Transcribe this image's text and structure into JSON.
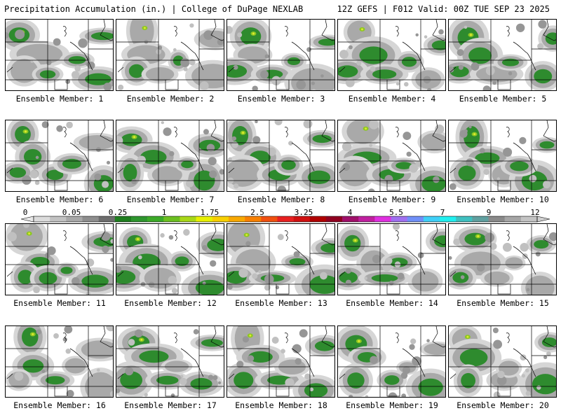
{
  "header": {
    "left_title": "Precipitation Accumulation (in.) | College of DuPage NEXLAB",
    "right_title": "12Z GEFS | F012 Valid: 00Z TUE SEP 23 2025"
  },
  "panels": [
    {
      "member": 1,
      "label": "Ensemble Member: 1"
    },
    {
      "member": 2,
      "label": "Ensemble Member: 2"
    },
    {
      "member": 3,
      "label": "Ensemble Member: 3"
    },
    {
      "member": 4,
      "label": "Ensemble Member: 4"
    },
    {
      "member": 5,
      "label": "Ensemble Member: 5"
    },
    {
      "member": 6,
      "label": "Ensemble Member: 6"
    },
    {
      "member": 7,
      "label": "Ensemble Member: 7"
    },
    {
      "member": 8,
      "label": "Ensemble Member: 8"
    },
    {
      "member": 9,
      "label": "Ensemble Member: 9"
    },
    {
      "member": 10,
      "label": "Ensemble Member: 10"
    },
    {
      "member": 11,
      "label": "Ensemble Member: 11"
    },
    {
      "member": 12,
      "label": "Ensemble Member: 12"
    },
    {
      "member": 13,
      "label": "Ensemble Member: 13"
    },
    {
      "member": 14,
      "label": "Ensemble Member: 14"
    },
    {
      "member": 15,
      "label": "Ensemble Member: 15"
    },
    {
      "member": 16,
      "label": "Ensemble Member: 16"
    },
    {
      "member": 17,
      "label": "Ensemble Member: 17"
    },
    {
      "member": 18,
      "label": "Ensemble Member: 18"
    },
    {
      "member": 19,
      "label": "Ensemble Member: 19"
    },
    {
      "member": 20,
      "label": "Ensemble Member: 20"
    }
  ],
  "colorbar": {
    "labels": [
      "0",
      "0.05",
      "0.25",
      "1",
      "1.75",
      "2.5",
      "3.25",
      "4",
      "5.5",
      "7",
      "9",
      "12"
    ],
    "colors": [
      "#dcdcdc",
      "#c2c2c2",
      "#a8a8a8",
      "#8e8e8e",
      "#6e6e6e",
      "#1e7e1e",
      "#2e962e",
      "#3caa28",
      "#6cc020",
      "#a8d818",
      "#e8f000",
      "#f8d000",
      "#f8a800",
      "#f88000",
      "#f05010",
      "#e82020",
      "#d01010",
      "#b00000",
      "#900020",
      "#a0106a",
      "#c020a0",
      "#e030e0",
      "#a070f0",
      "#7090f8",
      "#40d0f8",
      "#20f0f0",
      "#40c0c0",
      "#60a0a0",
      "#8a8a8a",
      "#a6a6a6",
      "#c4c4c4"
    ]
  }
}
